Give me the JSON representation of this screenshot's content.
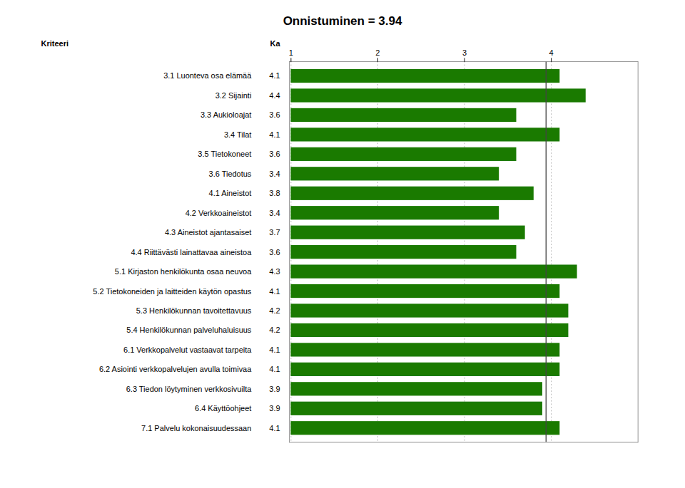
{
  "chart_data": {
    "type": "bar",
    "orientation": "horizontal",
    "title": "Onnistuminen = 3.94",
    "ylabel": "Kriteeri",
    "annotations": [
      "Ka"
    ],
    "categories": [
      "3.1 Luonteva osa elämää",
      "3.2 Sijainti",
      "3.3 Aukioloajat",
      "3.4 Tilat",
      "3.5 Tietokoneet",
      "3.6 Tiedotus",
      "4.1 Aineistot",
      "4.2 Verkkoaineistot",
      "4.3 Aineistot ajantasaiset",
      "4.4 Riittävästi lainattavaa aineistoa",
      "5.1 Kirjaston henkilökunta osaa neuvoa",
      "5.2 Tietokoneiden ja laitteiden käytön opastus",
      "5.3 Henkilökunnan tavoitettavuus",
      "5.4 Henkilökunnan palveluhaluisuus",
      "6.1 Verkkopalvelut vastaavat tarpeita",
      "6.2 Asiointi verkkopalvelujen avulla toimivaa",
      "6.3 Tiedon löytyminen verkkosivuilta",
      "6.4 Käyttöohjeet",
      "7.1 Palvelu kokonaisuudessaan"
    ],
    "values": [
      4.1,
      4.4,
      3.6,
      4.1,
      3.6,
      3.4,
      3.8,
      3.4,
      3.7,
      3.6,
      4.3,
      4.1,
      4.2,
      4.2,
      4.1,
      4.1,
      3.9,
      3.9,
      4.1
    ],
    "baseline": 1,
    "color": "#1a7a00",
    "reference_line": 3.94,
    "xlim": [
      0.98,
      5
    ],
    "xticks": [
      1,
      2,
      3,
      4
    ],
    "grid": true,
    "data_labels": true
  }
}
